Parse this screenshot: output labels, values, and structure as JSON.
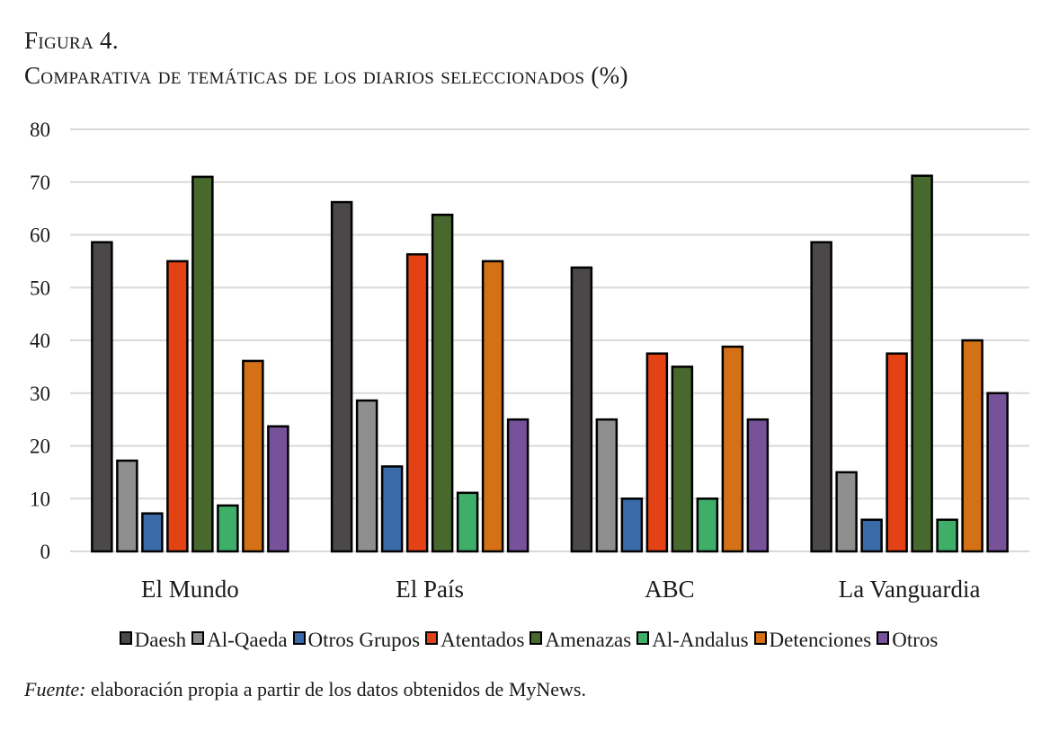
{
  "figure": {
    "label": "Figura 4.",
    "title": "Comparativa de temáticas de los diarios seleccionados (%)"
  },
  "source": {
    "prefix": "Fuente:",
    "text": " elaboración propia a partir de los datos obtenidos de MyNews."
  },
  "chart_data": {
    "type": "bar",
    "title": "Comparativa de temáticas de los diarios seleccionados (%)",
    "xlabel": "",
    "ylabel": "",
    "ylim": [
      0,
      80
    ],
    "yticks": [
      0,
      10,
      20,
      30,
      40,
      50,
      60,
      70,
      80
    ],
    "grid": true,
    "legend_position": "bottom",
    "categories": [
      "El Mundo",
      "El País",
      "ABC",
      "La Vanguardia"
    ],
    "series": [
      {
        "name": "Daesh",
        "color": "#4a4849",
        "values": [
          58.6,
          66.2,
          53.8,
          58.6
        ]
      },
      {
        "name": "Al-Qaeda",
        "color": "#8f8f8f",
        "values": [
          17.2,
          28.6,
          25.0,
          15.0
        ]
      },
      {
        "name": "Otros Grupos",
        "color": "#3a6aa8",
        "values": [
          7.2,
          16.1,
          10.0,
          6.0
        ]
      },
      {
        "name": "Atentados",
        "color": "#e34214",
        "values": [
          55.0,
          56.3,
          37.5,
          37.5
        ]
      },
      {
        "name": "Amenazas",
        "color": "#47692e",
        "values": [
          71.0,
          63.8,
          35.0,
          71.2
        ]
      },
      {
        "name": "Al-Andalus",
        "color": "#3fae68",
        "values": [
          8.7,
          11.1,
          10.0,
          6.0
        ]
      },
      {
        "name": "Detenciones",
        "color": "#d47117",
        "values": [
          36.1,
          55.0,
          38.8,
          40.0
        ]
      },
      {
        "name": "Otros",
        "color": "#77529b",
        "values": [
          23.7,
          25.0,
          25.0,
          30.0
        ]
      }
    ]
  }
}
